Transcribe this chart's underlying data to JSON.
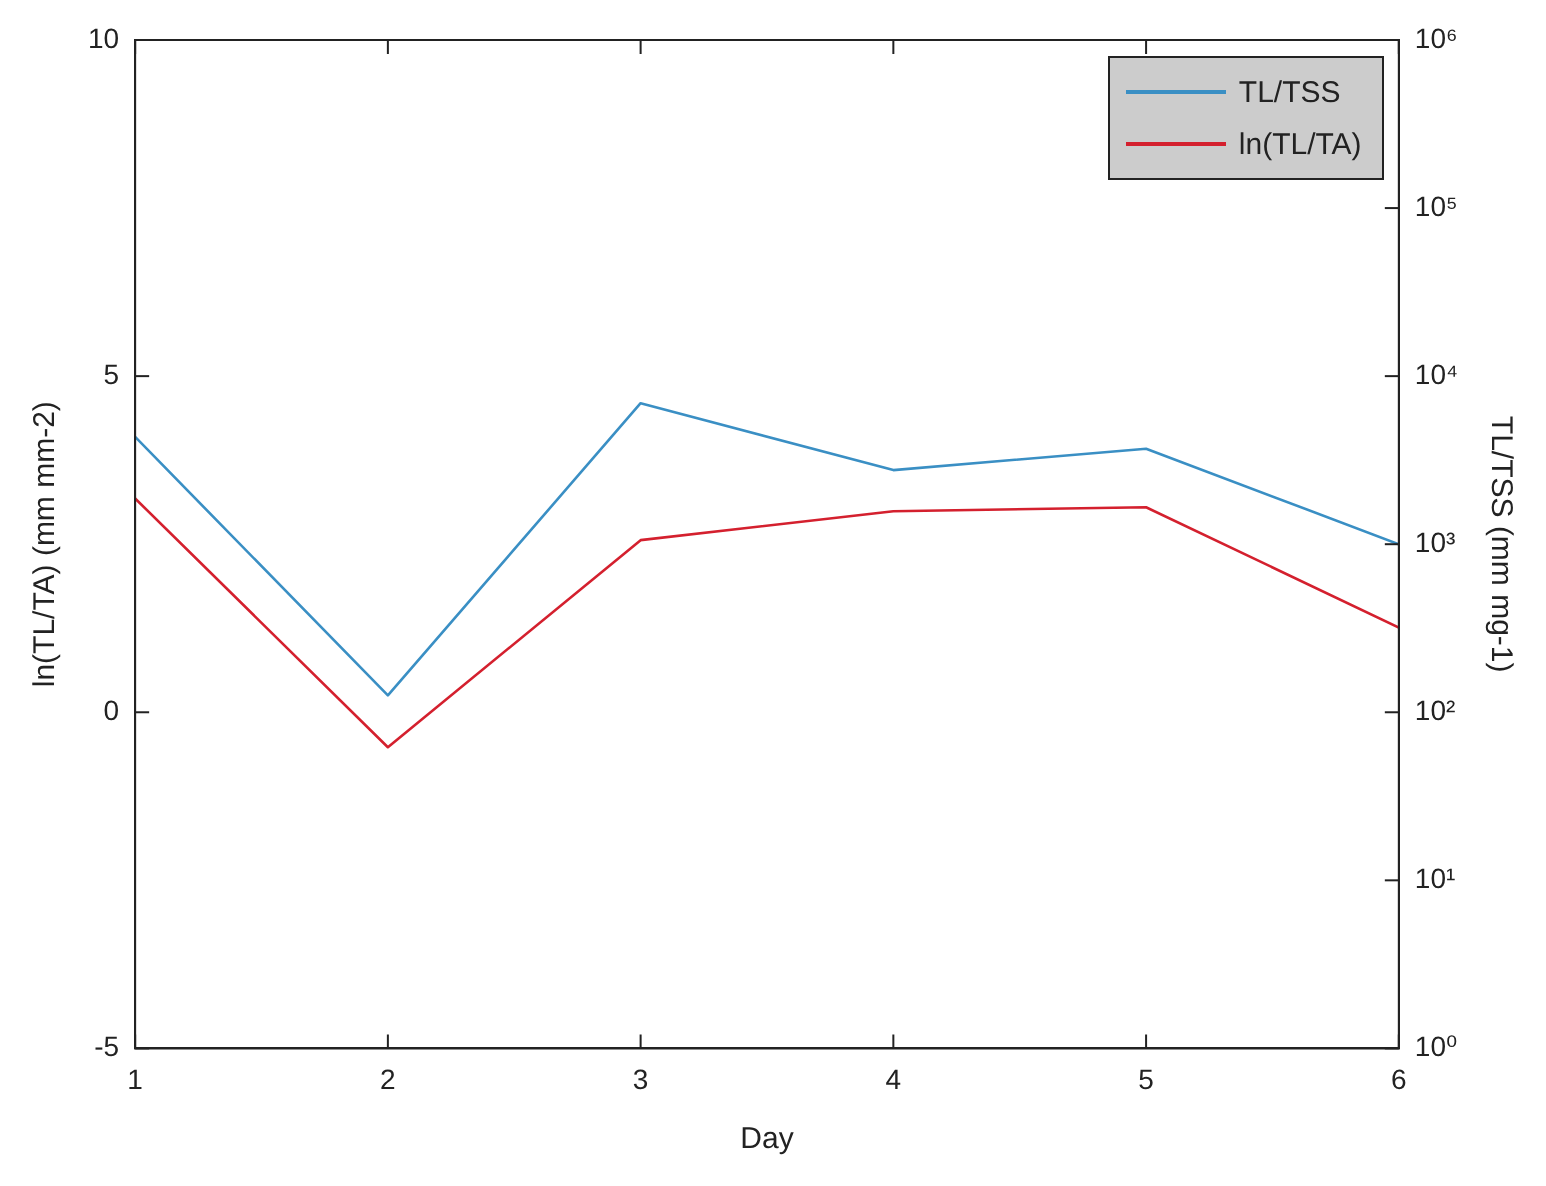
{
  "chart_data": {
    "type": "line",
    "xlabel": "Day",
    "ylabel": "ln(TL/TA) (mm mm-2)",
    "y2label": "TL/TSS (mm mg-1)",
    "x": [
      1,
      2,
      3,
      4,
      5,
      6
    ],
    "xlim": [
      1,
      6
    ],
    "xticks": [
      1,
      2,
      3,
      4,
      5,
      6
    ],
    "ylim": [
      -5,
      10
    ],
    "yticks": [
      -5,
      0,
      5,
      10
    ],
    "y2lim": [
      1,
      1000000
    ],
    "y2ticks": [
      {
        "value": 1,
        "label": "10⁰"
      },
      {
        "value": 10,
        "label": "10¹"
      },
      {
        "value": 100,
        "label": "10²"
      },
      {
        "value": 1000,
        "label": "10³"
      },
      {
        "value": 10000,
        "label": "10⁴"
      },
      {
        "value": 100000,
        "label": "10⁵"
      },
      {
        "value": 1000000,
        "label": "10⁶"
      }
    ],
    "log": "y2",
    "grid": false,
    "legend": "top right",
    "marker": "none",
    "line_style": "solid",
    "series": [
      {
        "name": "TL/TSS",
        "color": "#3a8fc4",
        "axis": "y2",
        "values": [
          4350,
          126,
          6900,
          2760,
          3700,
          1000
        ]
      },
      {
        "name": "ln(TL/TA)",
        "color": "#d4202e",
        "values": [
          3.18,
          -0.52,
          2.56,
          2.99,
          3.05,
          1.26
        ]
      }
    ]
  }
}
